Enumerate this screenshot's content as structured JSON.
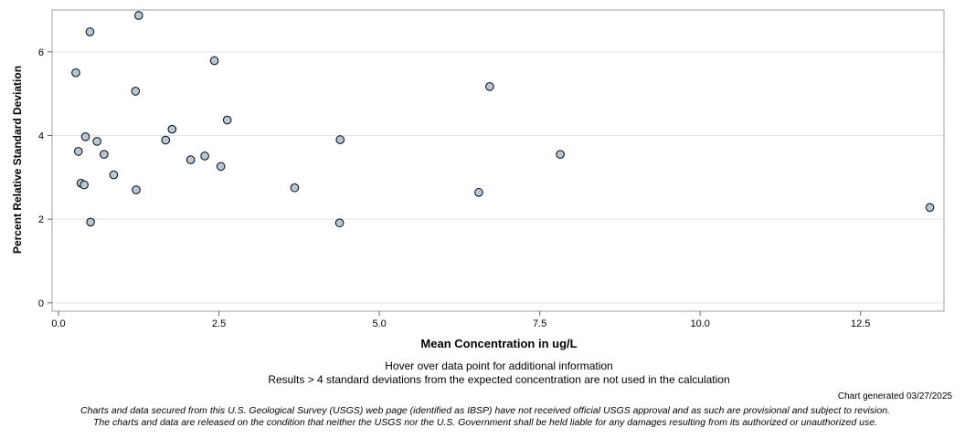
{
  "chart_data": {
    "type": "scatter",
    "title": "",
    "xlabel": "Mean Concentration in ug/L",
    "ylabel": "Percent Relative Standard Deviation",
    "xlim": [
      -0.1,
      13.8
    ],
    "ylim": [
      -0.2,
      7.0
    ],
    "x_ticks": [
      0.0,
      2.5,
      5.0,
      7.5,
      10.0,
      12.5
    ],
    "x_tick_labels": [
      "0.0",
      "2.5",
      "5.0",
      "7.5",
      "10.0",
      "12.5"
    ],
    "y_ticks": [
      0,
      2,
      4,
      6
    ],
    "y_tick_labels": [
      "0",
      "2",
      "4",
      "6"
    ],
    "grid": "horizontal",
    "marker_fill": "#b8c7d8",
    "marker_stroke": "#000000",
    "points": [
      {
        "x": 0.27,
        "y": 5.5
      },
      {
        "x": 0.31,
        "y": 3.62
      },
      {
        "x": 0.35,
        "y": 2.86
      },
      {
        "x": 0.4,
        "y": 2.82
      },
      {
        "x": 0.42,
        "y": 3.97
      },
      {
        "x": 0.49,
        "y": 6.48
      },
      {
        "x": 0.5,
        "y": 1.93
      },
      {
        "x": 0.6,
        "y": 3.86
      },
      {
        "x": 0.71,
        "y": 3.55
      },
      {
        "x": 0.86,
        "y": 3.06
      },
      {
        "x": 1.2,
        "y": 5.06
      },
      {
        "x": 1.21,
        "y": 2.7
      },
      {
        "x": 1.25,
        "y": 6.87
      },
      {
        "x": 1.67,
        "y": 3.89
      },
      {
        "x": 1.77,
        "y": 4.15
      },
      {
        "x": 2.06,
        "y": 3.42
      },
      {
        "x": 2.28,
        "y": 3.51
      },
      {
        "x": 2.43,
        "y": 5.79
      },
      {
        "x": 2.53,
        "y": 3.26
      },
      {
        "x": 2.63,
        "y": 4.37
      },
      {
        "x": 3.68,
        "y": 2.75
      },
      {
        "x": 4.38,
        "y": 1.91
      },
      {
        "x": 4.39,
        "y": 3.9
      },
      {
        "x": 6.55,
        "y": 2.64
      },
      {
        "x": 6.72,
        "y": 5.17
      },
      {
        "x": 7.82,
        "y": 3.55
      },
      {
        "x": 13.58,
        "y": 2.28
      }
    ]
  },
  "notes": {
    "hover": "Hover over data point for additional information",
    "exclusion": "Results > 4 standard deviations from the expected concentration are not used in the calculation",
    "generated": "Chart generated 03/27/2025"
  },
  "disclaimer": {
    "line1": "Charts and data secured from this U.S. Geological Survey (USGS) web page (identified as IBSP) have not received official USGS approval and as such are provisional and subject to revision.",
    "line2": "The charts and data are released on the condition that neither the USGS nor the U.S. Government shall be held liable for any damages resulting from its authorized or unauthorized use."
  }
}
